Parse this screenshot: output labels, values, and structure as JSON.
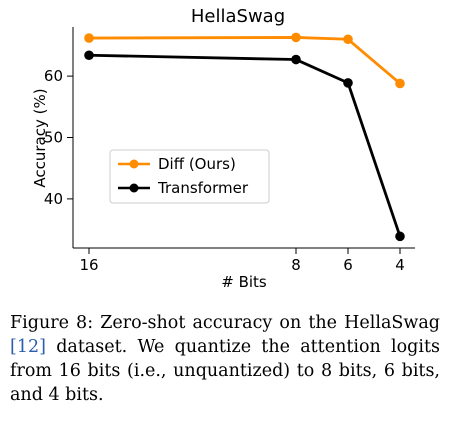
{
  "chart_data": {
    "type": "line",
    "title": "HellaSwag",
    "xlabel": "# Bits",
    "ylabel": "Accuracy (%)",
    "x": [
      16,
      8,
      6,
      4
    ],
    "x_tick_labels": [
      "16",
      "8",
      "6",
      "4"
    ],
    "y_ticks": [
      40,
      50,
      60
    ],
    "ylim": [
      32,
      68
    ],
    "series": [
      {
        "name": "Diff (Ours)",
        "color": "#ff8c00",
        "values": [
          66.2,
          66.3,
          66.0,
          58.8
        ]
      },
      {
        "name": "Transformer",
        "color": "#000000",
        "values": [
          63.4,
          62.7,
          58.9,
          33.9
        ]
      }
    ],
    "legend_placement": "center-left",
    "grid": false
  },
  "caption": {
    "lead": "Figure 8:  Zero-shot accuracy on the HellaSwag",
    "citation": "[12]",
    "rest": "dataset. We quantize the attention logits from 16 bits (i.e., unquantized) to 8 bits, 6 bits, and 4 bits."
  }
}
